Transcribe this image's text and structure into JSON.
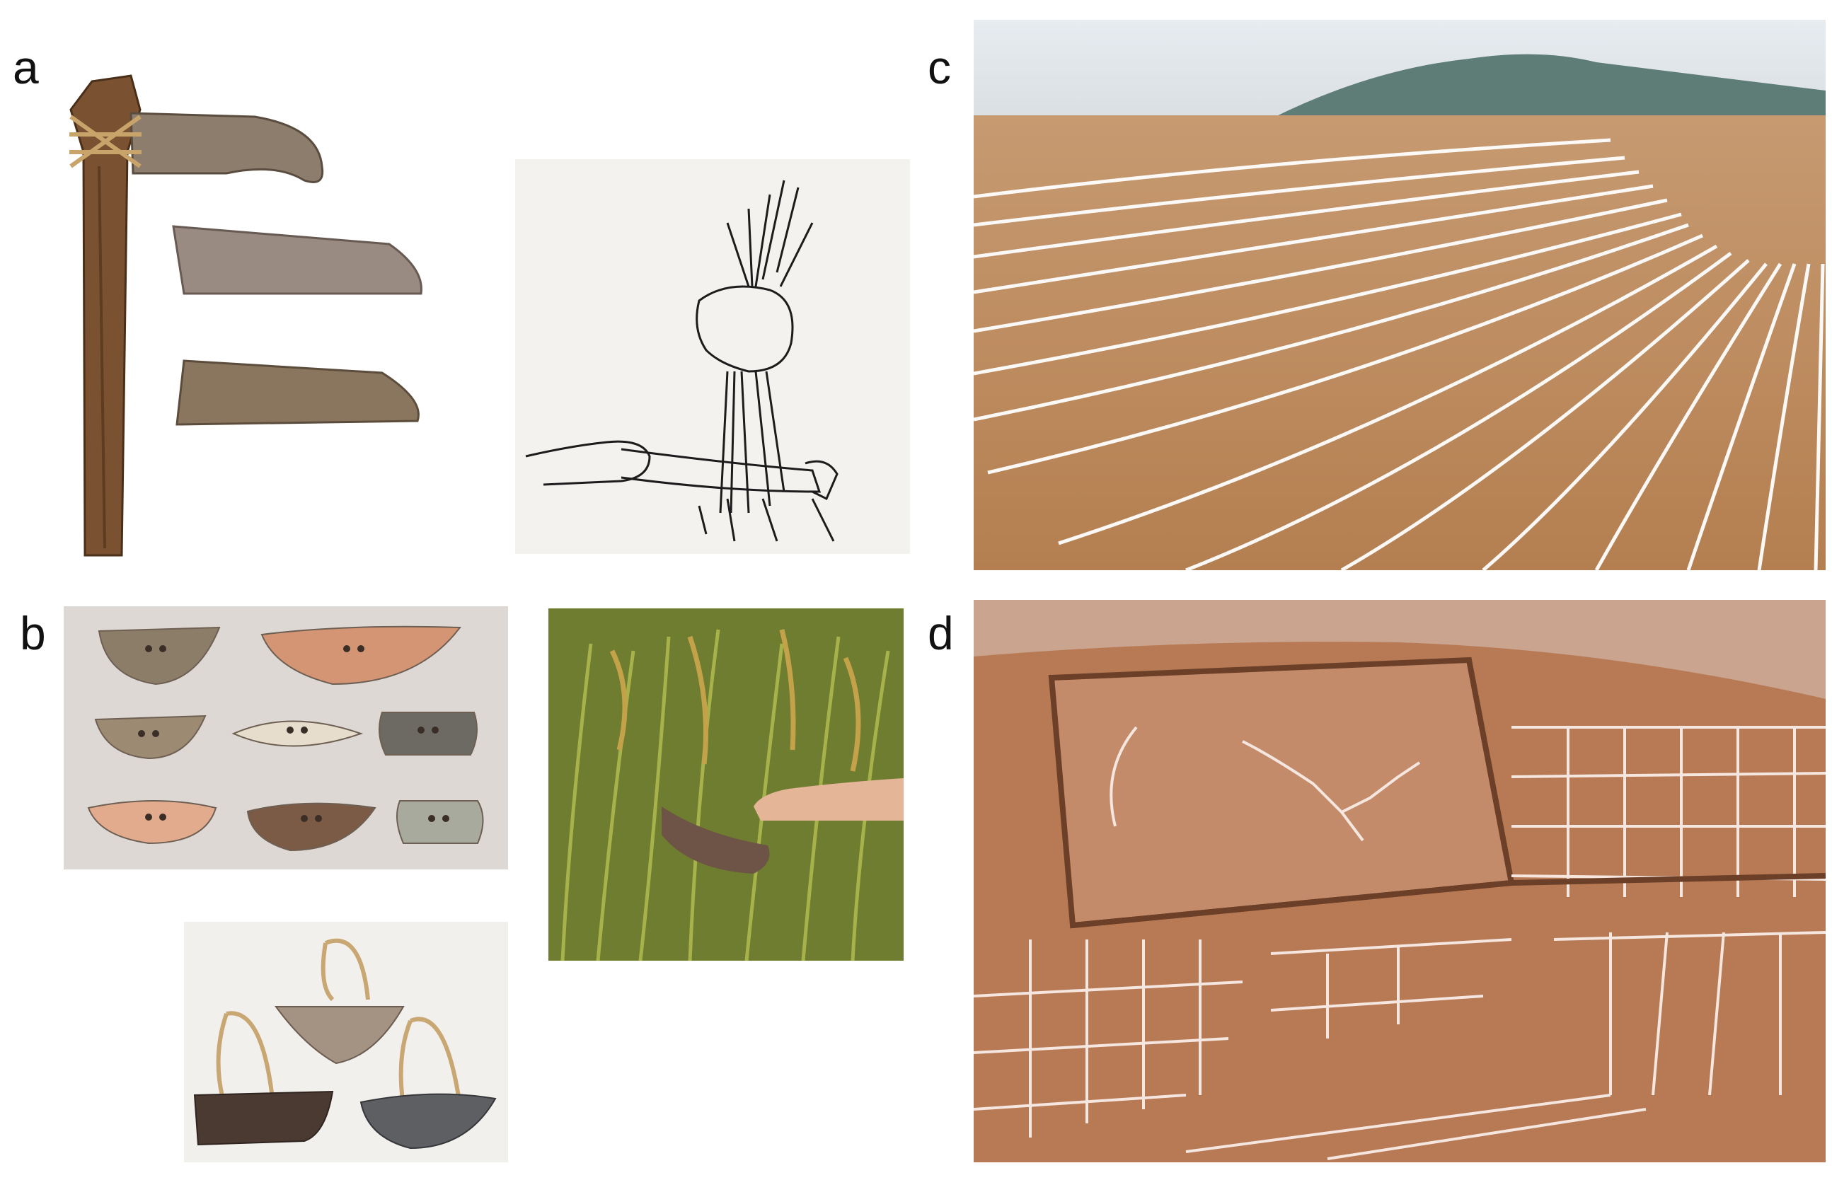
{
  "figure": {
    "panel_labels": {
      "a": "a",
      "b": "b",
      "c": "c",
      "d": "d"
    }
  },
  "colors": {
    "background": "#ffffff",
    "soil": "#b98554",
    "excavation_plan": "#b06f4a",
    "trench_lines": "#ffffff",
    "rice_field": "#7f8f3a"
  },
  "panels": [
    {
      "id": "a",
      "content": [
        "stone-hoe-with-wooden-handle",
        "polished-stone-blade",
        "ground-stone-blade"
      ]
    },
    {
      "id": "a-drawing",
      "content": [
        "line-drawing-harvesting-with-hoe"
      ]
    },
    {
      "id": "b",
      "content": [
        "perforated-stone-harvesting-knives"
      ]
    },
    {
      "id": "b-strung",
      "content": [
        "stone-knives-with-string-loops"
      ]
    },
    {
      "id": "b-photo",
      "content": [
        "hand-harvesting-rice-with-stone-knife"
      ]
    },
    {
      "id": "c",
      "content": [
        "excavated-field-with-white-furrow-lines"
      ]
    },
    {
      "id": "d",
      "content": [
        "aerial-plan-of-excavated-paddy-field-boundaries"
      ]
    }
  ]
}
